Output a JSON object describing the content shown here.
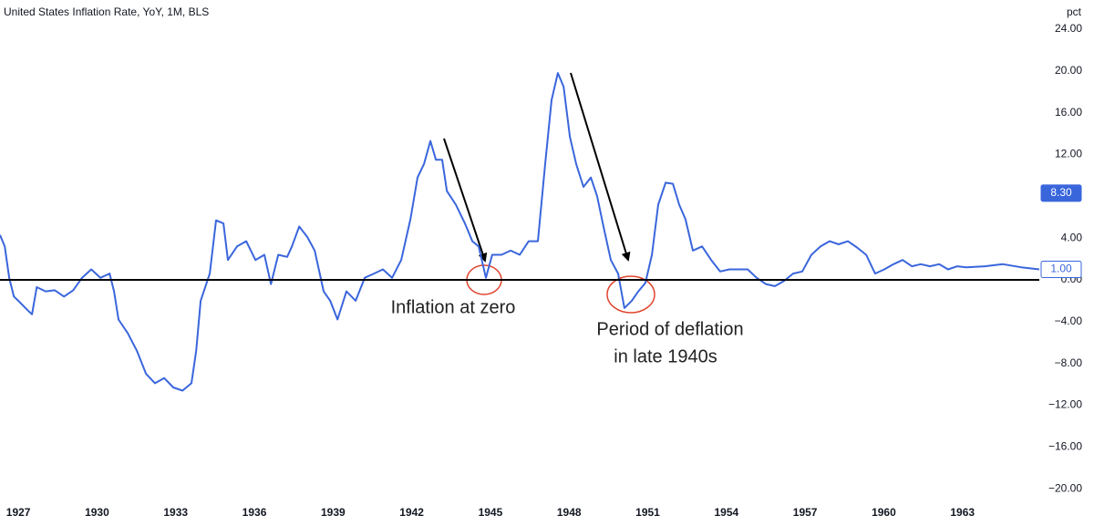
{
  "chart_data": {
    "type": "line",
    "title": "United States Inflation Rate, YoY, 1M, BLS",
    "y_unit": "pct",
    "x": [
      1926.3,
      1926.48,
      1926.65,
      1926.83,
      1927.0,
      1927.35,
      1927.52,
      1927.7,
      1928.04,
      1928.39,
      1928.74,
      1929.09,
      1929.43,
      1929.78,
      1930.13,
      1930.48,
      1930.65,
      1930.82,
      1931.17,
      1931.52,
      1931.87,
      1932.21,
      1932.56,
      1932.91,
      1933.26,
      1933.6,
      1933.78,
      1933.95,
      1934.3,
      1934.54,
      1934.82,
      1934.99,
      1935.34,
      1935.69,
      1936.04,
      1936.38,
      1936.63,
      1936.91,
      1937.25,
      1937.43,
      1937.71,
      1938.02,
      1938.3,
      1938.64,
      1938.89,
      1939.17,
      1939.51,
      1939.86,
      1940.21,
      1940.56,
      1940.9,
      1941.25,
      1941.6,
      1941.95,
      1942.22,
      1942.47,
      1942.71,
      1942.92,
      1943.16,
      1943.34,
      1943.68,
      1944.03,
      1944.31,
      1944.55,
      1944.83,
      1945.07,
      1945.42,
      1945.77,
      1946.12,
      1946.46,
      1946.81,
      1947.09,
      1947.33,
      1947.57,
      1947.79,
      1948.03,
      1948.27,
      1948.55,
      1948.83,
      1949.07,
      1949.32,
      1949.59,
      1949.87,
      1950.11,
      1950.39,
      1950.64,
      1950.91,
      1951.16,
      1951.4,
      1951.68,
      1951.96,
      1952.2,
      1952.44,
      1952.72,
      1953.07,
      1953.42,
      1953.76,
      1954.11,
      1954.46,
      1954.81,
      1955.15,
      1955.5,
      1955.85,
      1956.2,
      1956.54,
      1956.89,
      1957.24,
      1957.59,
      1957.93,
      1958.28,
      1958.63,
      1958.98,
      1959.33,
      1959.67,
      1960.02,
      1960.37,
      1960.72,
      1961.07,
      1961.41,
      1961.76,
      1962.11,
      1962.45,
      1962.8,
      1963.15,
      1963.85,
      1964.54,
      1965.24,
      1965.93
    ],
    "series": [
      {
        "name": "United States Inflation Rate",
        "color": "#3a66dc",
        "values": [
          4.3,
          3.2,
          0.2,
          -1.6,
          -2.0,
          -2.9,
          -3.3,
          -0.7,
          -1.1,
          -1.0,
          -1.6,
          -1.0,
          0.2,
          1.0,
          0.2,
          0.6,
          -1.1,
          -3.8,
          -5.1,
          -6.8,
          -9.0,
          -9.9,
          -9.4,
          -10.3,
          -10.6,
          -9.9,
          -6.8,
          -2.0,
          0.6,
          5.7,
          5.4,
          1.9,
          3.2,
          3.7,
          1.9,
          2.4,
          -0.4,
          2.4,
          2.2,
          3.2,
          5.1,
          4.1,
          2.8,
          -1.1,
          -2.0,
          -3.8,
          -1.1,
          -2.0,
          0.2,
          0.6,
          1.0,
          0.2,
          1.9,
          5.8,
          9.8,
          11.1,
          13.3,
          11.5,
          11.5,
          8.5,
          7.2,
          5.4,
          3.7,
          3.2,
          0.2,
          2.4,
          2.4,
          2.8,
          2.4,
          3.7,
          3.7,
          11.1,
          17.2,
          19.8,
          18.5,
          13.7,
          11.1,
          8.9,
          9.8,
          8.0,
          5.0,
          1.9,
          0.6,
          -2.7,
          -2.0,
          -1.1,
          -0.3,
          2.4,
          7.2,
          9.3,
          9.2,
          7.2,
          5.8,
          2.8,
          3.2,
          1.9,
          0.8,
          1.0,
          1.0,
          1.0,
          0.2,
          -0.4,
          -0.6,
          -0.1,
          0.6,
          0.8,
          2.4,
          3.2,
          3.7,
          3.4,
          3.7,
          3.1,
          2.4,
          0.6,
          1.0,
          1.5,
          1.9,
          1.3,
          1.5,
          1.3,
          1.5,
          1.0,
          1.3,
          1.2,
          1.3,
          1.5,
          1.2,
          1.0
        ]
      }
    ],
    "xlim": [
      1926.3,
      1965.93
    ],
    "xticks": [
      1927,
      1930,
      1933,
      1936,
      1939,
      1942,
      1945,
      1948,
      1951,
      1954,
      1957,
      1960,
      1963
    ],
    "ylim": [
      -22.08,
      26.79
    ],
    "yticks": [
      {
        "value": 24,
        "label": "24.00"
      },
      {
        "value": 20,
        "label": "20.00"
      },
      {
        "value": 16,
        "label": "16.00"
      },
      {
        "value": 12,
        "label": "12.00"
      },
      {
        "value": 4,
        "label": "4.00"
      },
      {
        "value": 0,
        "label": "0.00"
      },
      {
        "value": -4,
        "label": "−4.00"
      },
      {
        "value": -8,
        "label": "−8.00"
      },
      {
        "value": -12,
        "label": "−12.00"
      },
      {
        "value": -16,
        "label": "−16.00"
      },
      {
        "value": -20,
        "label": "−20.00"
      }
    ],
    "hline": 0,
    "price_labels": [
      {
        "value": 8.3,
        "label": "8.30",
        "filled": true
      },
      {
        "value": 1,
        "label": "1.00",
        "filled": false
      }
    ],
    "annotations": [
      "Inflation at zero",
      "Period of deflation",
      "in late 1940s"
    ],
    "grid": false
  }
}
